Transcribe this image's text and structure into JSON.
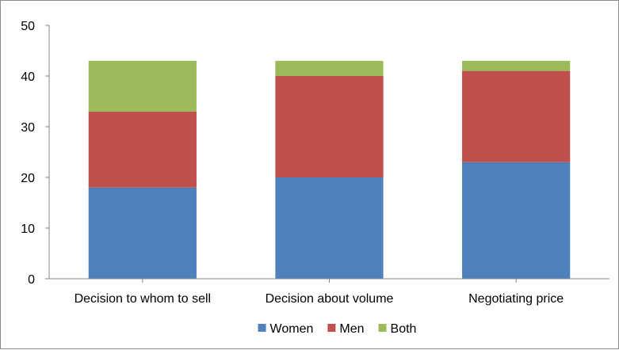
{
  "chart_data": {
    "type": "bar",
    "stacked": true,
    "categories": [
      "Decision to whom to sell",
      "Decision about volume",
      "Negotiating price"
    ],
    "series": [
      {
        "name": "Women",
        "values": [
          18,
          20,
          23
        ],
        "color": "#4f81bd"
      },
      {
        "name": "Men",
        "values": [
          15,
          20,
          18
        ],
        "color": "#c0504d"
      },
      {
        "name": "Both",
        "values": [
          10,
          3,
          2
        ],
        "color": "#9bbb59"
      }
    ],
    "yticks": [
      "0",
      "10",
      "20",
      "30",
      "40",
      "50"
    ],
    "ylim": [
      0,
      50
    ],
    "grid": false,
    "legend_position": "bottom"
  }
}
